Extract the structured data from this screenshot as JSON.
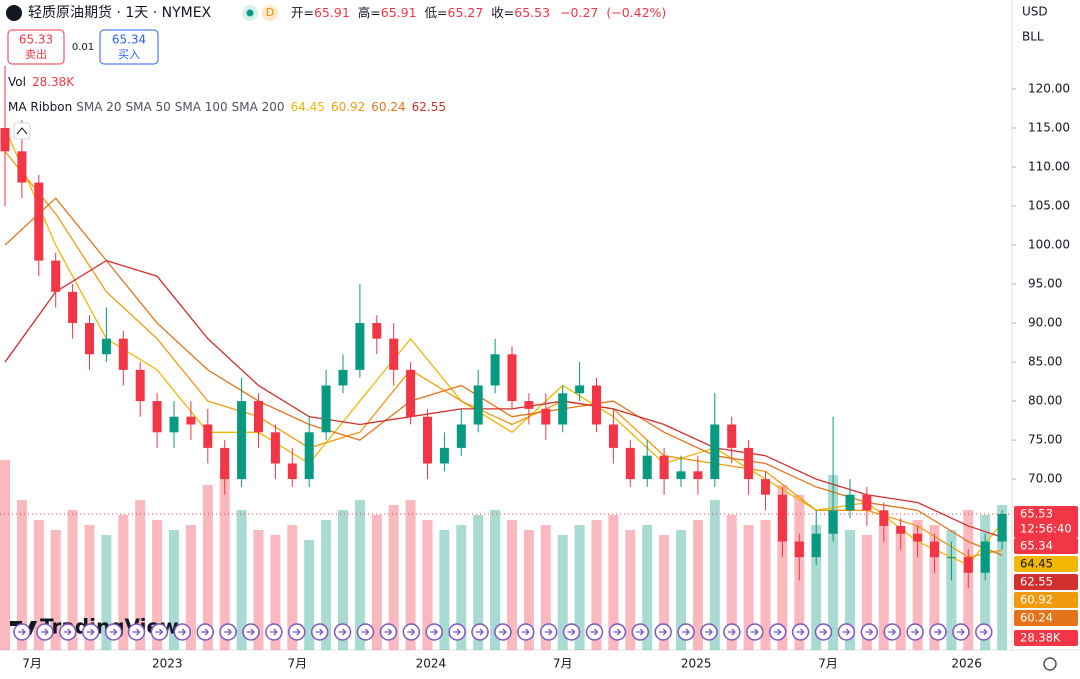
{
  "header": {
    "symbol": "轻质原油期货 · 1天 · NYMEX",
    "interval_badge": "D",
    "ohlc": [
      {
        "label": "开=",
        "value": 65.91
      },
      {
        "label": "高=",
        "value": 65.91
      },
      {
        "label": "低=",
        "value": 65.27
      },
      {
        "label": "收=",
        "value": 65.53
      }
    ],
    "change": "−0.27",
    "change_pct": "(−0.42%)"
  },
  "trade": {
    "sell_price": 65.33,
    "sell_label": "卖出",
    "spread": 0.01,
    "buy_price": 65.34,
    "buy_label": "买入"
  },
  "currency": "USD",
  "unit": "BLL",
  "watermark": "TradingView",
  "chart_data": {
    "type": "candlestick",
    "up_color": "#089981",
    "down_color": "#f23645",
    "xticks": [
      {
        "value": 1.6,
        "label": "7月"
      },
      {
        "value": 9.6,
        "label": "2023"
      },
      {
        "value": 17.3,
        "label": "7月"
      },
      {
        "value": 25.2,
        "label": "2024"
      },
      {
        "value": 33.0,
        "label": "7月"
      },
      {
        "value": 40.9,
        "label": "2025"
      },
      {
        "value": 48.7,
        "label": "7月"
      },
      {
        "value": 56.9,
        "label": "2026"
      }
    ],
    "ylim": [
      48.1,
      131.4
    ],
    "yticks": [
      {
        "value": 70,
        "label": "70.00"
      },
      {
        "value": 75,
        "label": "75.00"
      },
      {
        "value": 80,
        "label": "80.00"
      },
      {
        "value": 85,
        "label": "85.00"
      },
      {
        "value": 90,
        "label": "90.00"
      },
      {
        "value": 95,
        "label": "95.00"
      },
      {
        "value": 100,
        "label": "100.00"
      },
      {
        "value": 105,
        "label": "105.00"
      },
      {
        "value": 110,
        "label": "110.00"
      },
      {
        "value": 115,
        "label": "115.00"
      },
      {
        "value": 120,
        "label": "120.00"
      }
    ],
    "open": [
      115,
      112,
      108,
      98,
      94,
      90,
      86,
      88,
      84,
      80,
      76,
      78,
      77,
      74,
      70,
      80,
      76,
      72,
      70,
      76,
      82,
      84,
      90,
      88,
      84,
      78,
      72,
      74,
      77,
      82,
      86,
      80,
      79,
      77,
      81,
      82,
      77,
      74,
      70,
      73,
      70,
      71,
      70,
      77,
      74,
      70,
      68,
      62,
      60,
      63,
      66,
      68,
      66,
      64,
      63,
      62,
      60,
      60,
      58,
      62
    ],
    "high": [
      123,
      116,
      109,
      99,
      95,
      91,
      92,
      89,
      85,
      81,
      80,
      80,
      79,
      75,
      83,
      81,
      77,
      74,
      78,
      84,
      86,
      95,
      91,
      90,
      85,
      79,
      76,
      79,
      84,
      88,
      87,
      81,
      81,
      82,
      85,
      83,
      79,
      75,
      75,
      74,
      73,
      73,
      81,
      78,
      75,
      71,
      69,
      63,
      66,
      78,
      70,
      69,
      67,
      65,
      64,
      63,
      62,
      61,
      63,
      66
    ],
    "low": [
      105,
      106,
      96,
      92,
      88,
      84,
      85,
      82,
      78,
      74,
      74,
      75,
      72,
      68,
      69,
      74,
      70,
      69,
      69,
      75,
      81,
      83,
      86,
      82,
      77,
      70,
      71,
      73,
      76,
      81,
      79,
      77,
      75,
      76,
      80,
      76,
      72,
      69,
      69,
      68,
      69,
      68,
      69,
      72,
      68,
      66,
      60,
      57,
      59,
      62,
      65,
      64,
      62,
      61,
      60,
      58,
      57,
      56,
      57,
      61
    ],
    "close": [
      112,
      108,
      98,
      94,
      90,
      86,
      88,
      84,
      80,
      76,
      78,
      77,
      74,
      70,
      80,
      76,
      72,
      70,
      76,
      82,
      84,
      90,
      88,
      84,
      78,
      72,
      74,
      77,
      82,
      86,
      80,
      79,
      77,
      81,
      82,
      77,
      74,
      70,
      73,
      70,
      71,
      70,
      77,
      74,
      70,
      68,
      62,
      60,
      63,
      66,
      68,
      66,
      64,
      63,
      62,
      60,
      60,
      58,
      62,
      65.53
    ],
    "volume": [
      380000,
      300000,
      260000,
      240000,
      280000,
      250000,
      230000,
      270000,
      300000,
      260000,
      240000,
      250000,
      330000,
      360000,
      280000,
      240000,
      230000,
      250000,
      220000,
      260000,
      280000,
      300000,
      270000,
      290000,
      300000,
      260000,
      240000,
      250000,
      270000,
      280000,
      260000,
      240000,
      250000,
      230000,
      250000,
      260000,
      270000,
      240000,
      250000,
      230000,
      240000,
      260000,
      300000,
      270000,
      250000,
      260000,
      330000,
      310000,
      250000,
      350000,
      240000,
      230000,
      250000,
      240000,
      260000,
      250000,
      240000,
      280000,
      270000,
      290000
    ],
    "vlim": [
      0,
      1300000
    ],
    "volume_label": "28.38K",
    "countdown": "12:56:40",
    "indicator": "MA Ribbon",
    "ma_x": [
      0,
      3,
      6,
      9,
      12,
      15,
      18,
      21,
      24,
      27,
      30,
      33,
      36,
      39,
      42,
      45,
      48,
      51,
      54,
      57,
      59
    ],
    "series": [
      {
        "name": "SMA 20",
        "color": "#f2b705",
        "values": [
          115,
          100,
          88,
          84,
          76,
          76,
          72,
          80,
          88,
          80,
          76,
          82,
          78,
          72,
          74,
          70,
          66,
          67,
          62,
          59,
          64.45
        ]
      },
      {
        "name": "SMA 50",
        "color": "#f29a0e",
        "values": [
          112,
          104,
          94,
          88,
          80,
          78,
          74,
          76,
          84,
          80,
          77,
          80,
          79,
          73,
          72,
          71,
          66,
          66,
          64,
          60,
          60.92
        ]
      },
      {
        "name": "SMA 100",
        "color": "#e5731c",
        "values": [
          100,
          106,
          98,
          90,
          84,
          80,
          77,
          75,
          80,
          82,
          78,
          79,
          80,
          76,
          73,
          72,
          69,
          67,
          66,
          62,
          60.24
        ]
      },
      {
        "name": "SMA 200",
        "color": "#d32f2f",
        "values": [
          85,
          94,
          98,
          96,
          88,
          82,
          78,
          77,
          78,
          79,
          79,
          80,
          79,
          77,
          74,
          73,
          70,
          68,
          67,
          64,
          62.55
        ]
      }
    ]
  }
}
